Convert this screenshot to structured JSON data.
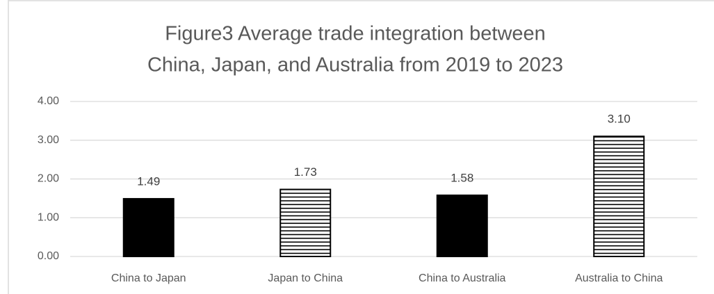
{
  "chart_data": {
    "type": "bar",
    "title": [
      "Figure3  Average trade integration between",
      "China, Japan, and Australia from 2019 to 2023"
    ],
    "categories": [
      "China to Japan",
      "Japan to China",
      "China to Australia",
      "Australia to China"
    ],
    "values": [
      1.49,
      1.73,
      1.58,
      3.1
    ],
    "value_labels": [
      "1.49",
      "1.73",
      "1.58",
      "3.10"
    ],
    "color": "#000000",
    "patterns": [
      "solid",
      "horizontal-lines",
      "solid",
      "horizontal-lines"
    ],
    "ylim": [
      0,
      4
    ],
    "yticks": [
      {
        "value": 0,
        "label": "0.00"
      },
      {
        "value": 1,
        "label": "1.00"
      },
      {
        "value": 2,
        "label": "2.00"
      },
      {
        "value": 3,
        "label": "3.00"
      },
      {
        "value": 4,
        "label": "4.00"
      }
    ],
    "grid": true
  }
}
